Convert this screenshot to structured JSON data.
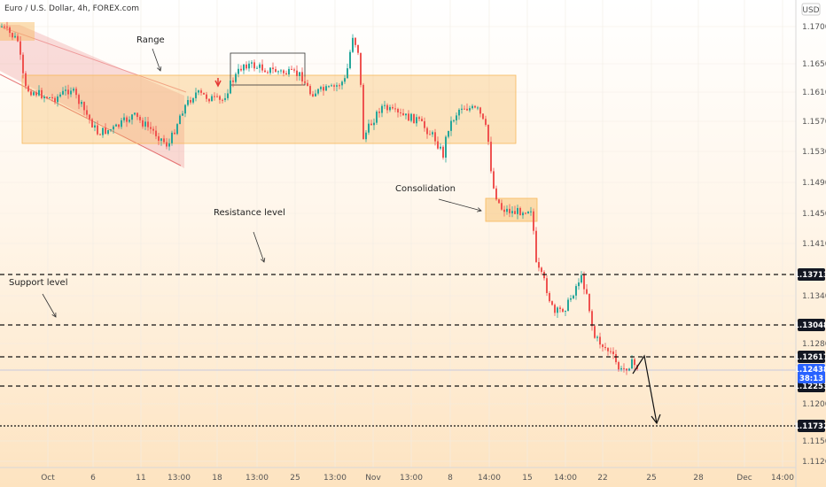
{
  "header": {
    "symbol": "Euro / U.S. Dollar, 4h, FOREX.com",
    "currency": "USD"
  },
  "chart_data": {
    "type": "candlestick",
    "y_ticks": [
      "1.17000",
      "1.16500",
      "1.16100",
      "1.15700",
      "1.15300",
      "1.14900",
      "1.14500",
      "1.14100",
      "1.13400",
      "1.12800",
      "1.12000",
      "1.11500",
      "1.11260"
    ],
    "y_tick_values": [
      1.17,
      1.165,
      1.161,
      1.157,
      1.153,
      1.149,
      1.145,
      1.141,
      1.134,
      1.128,
      1.12,
      1.115,
      1.1126
    ],
    "ylim": [
      1.1104,
      1.174
    ],
    "x_ticks": [
      "Oct",
      "6",
      "11",
      "13:00",
      "18",
      "13:00",
      "25",
      "13:00",
      "Nov",
      "13:00",
      "8",
      "14:00",
      "15",
      "14:00",
      "22",
      "25",
      "28",
      "Dec",
      "14:00"
    ],
    "price_levels": [
      {
        "value": "1.13713",
        "price": 1.13713,
        "style": "dashed"
      },
      {
        "value": "1.13048",
        "price": 1.13048,
        "style": "dashed"
      },
      {
        "value": "1.12617",
        "price": 1.12617,
        "style": "dashed"
      },
      {
        "value": "1.12253",
        "price": 1.12253,
        "style": "dashed"
      },
      {
        "value": "1.11732",
        "price": 1.11732,
        "style": "dotted"
      }
    ],
    "current_price": {
      "value": "1.12438",
      "price": 1.12438,
      "countdown": "38:13"
    },
    "annotations": [
      "Range",
      "Consolidation",
      "Resistance level",
      "Support level"
    ],
    "colors": {
      "up": "#26a69a",
      "down": "#ef5350",
      "zone": "#f7b85a",
      "channel": "#ef9a9a",
      "level": "#111111",
      "price_tag": "#2962ff"
    }
  }
}
